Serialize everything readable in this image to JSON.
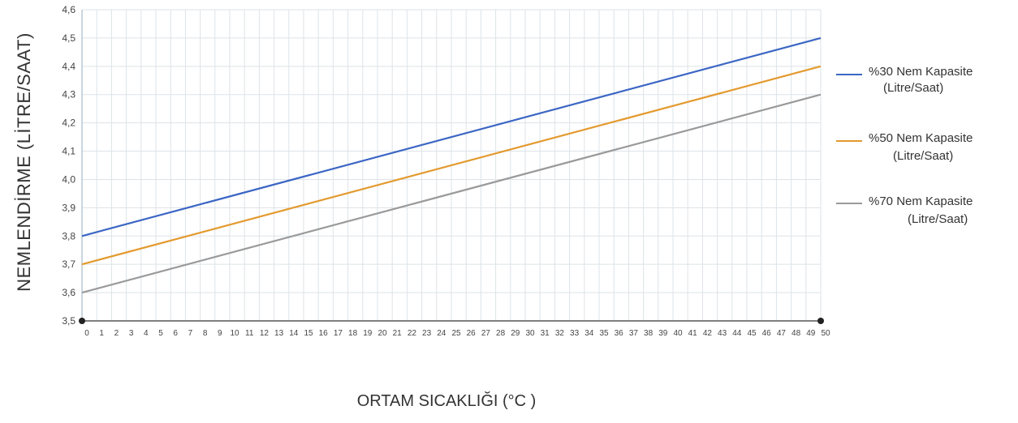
{
  "chart_data": {
    "type": "line",
    "title": "",
    "xlabel": "ORTAM SICAKLIĞI (°C )",
    "ylabel": "NEMLENDİRME (LİTRE/SAAT)",
    "x": [
      0,
      50
    ],
    "xticks": [
      "0",
      "1",
      "2",
      "3",
      "4",
      "5",
      "6",
      "7",
      "8",
      "9",
      "10",
      "11",
      "12",
      "13",
      "14",
      "15",
      "16",
      "17",
      "18",
      "19",
      "20",
      "21",
      "22",
      "23",
      "24",
      "25",
      "26",
      "27",
      "28",
      "29",
      "30",
      "31",
      "32",
      "33",
      "34",
      "35",
      "36",
      "37",
      "38",
      "39",
      "40",
      "41",
      "42",
      "43",
      "44",
      "45",
      "46",
      "47",
      "48",
      "49",
      "50"
    ],
    "xlim": [
      0,
      50
    ],
    "ylim": [
      3.5,
      4.6
    ],
    "yticks": [
      "3,5",
      "3,6",
      "3,7",
      "3,8",
      "3,9",
      "4,0",
      "4,1",
      "4,2",
      "4,3",
      "4,4",
      "4,5",
      "4,6"
    ],
    "grid": true,
    "legend_position": "right",
    "series": [
      {
        "name": "%30 Nem Kapasite",
        "unit": "(Litre/Saat)",
        "color": "#3b66c4",
        "x": [
          0,
          50
        ],
        "y": [
          3.8,
          4.5
        ]
      },
      {
        "name": "%50 Nem Kapasite",
        "unit": "(Litre/Saat)",
        "color": "#e39a2f",
        "x": [
          0,
          50
        ],
        "y": [
          3.7,
          4.4
        ]
      },
      {
        "name": "%70 Nem Kapasite",
        "unit": "(Litre/Saat)",
        "color": "#9a9a9a",
        "x": [
          0,
          50
        ],
        "y": [
          3.6,
          4.3
        ]
      }
    ]
  }
}
